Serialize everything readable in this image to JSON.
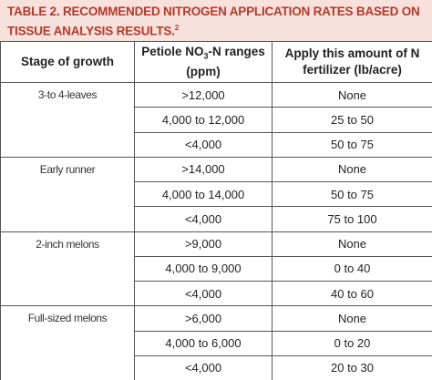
{
  "title": "TABLE 2. RECOMMENDED NITROGEN APPLICATION RATES BASED ON TISSUE ANALYSIS RESULTS.",
  "title_sup": "2",
  "header": {
    "stage": "Stage of growth",
    "range": {
      "text": "Petiole NO",
      "sub": "3",
      "rest": "-N ranges (ppm)"
    },
    "amount": "Apply this amount of N fertilizer (lb/acre)"
  },
  "groups": [
    {
      "stage": "3-to 4-leaves",
      "rows": [
        [
          ">12,000",
          "None"
        ],
        [
          "4,000 to 12,000",
          "25 to 50"
        ],
        [
          "<4,000",
          "50 to 75"
        ]
      ]
    },
    {
      "stage": "Early runner",
      "rows": [
        [
          ">14,000",
          "None"
        ],
        [
          "4,000 to 14,000",
          "50 to 75"
        ],
        [
          "<4,000",
          "75 to 100"
        ]
      ]
    },
    {
      "stage": "2-inch melons",
      "rows": [
        [
          ">9,000",
          "None"
        ],
        [
          "4,000 to 9,000",
          "0 to 40"
        ],
        [
          "<4,000",
          "40 to 60"
        ]
      ]
    },
    {
      "stage": "Full-sized melons",
      "rows": [
        [
          ">6,000",
          "None"
        ],
        [
          "4,000 to 6,000",
          "0 to 20"
        ],
        [
          "<4,000",
          "20 to 30"
        ]
      ]
    }
  ]
}
